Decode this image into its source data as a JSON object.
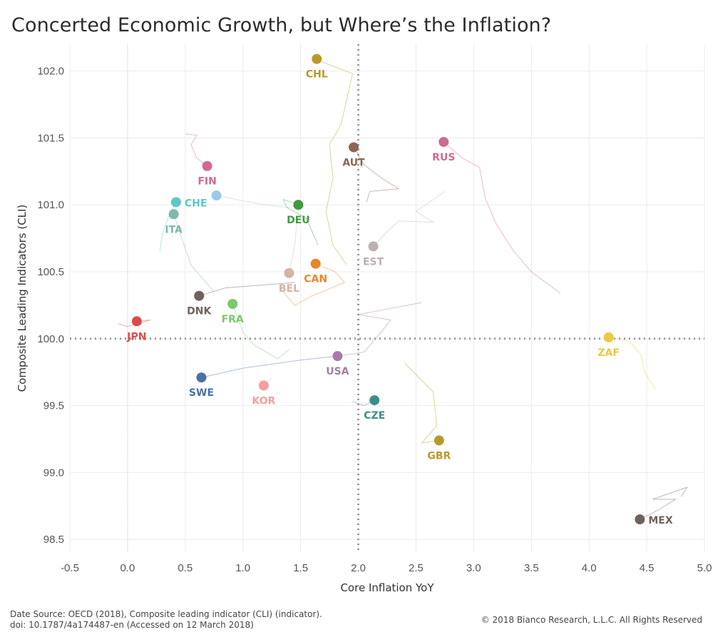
{
  "title": "Concerted Economic Growth, but Where’s the Inflation?",
  "footer": {
    "source_line1": "Date Source: OECD (2018), Composite leading indicator (CLI) (indicator).",
    "source_line2": "doi: 10.1787/4a174487-en (Accessed on 12 March 2018)",
    "copyright": "© 2018 Bianco Research, L.L.C. All Rights Reserved"
  },
  "chart_data": {
    "type": "scatter",
    "title": "Concerted Economic Growth, but Where’s the Inflation?",
    "xlabel": "Core Inflation YoY",
    "ylabel": "Composite Leading Indicators (CLI)",
    "xlim": [
      -0.5,
      5.0
    ],
    "ylim": [
      98.4,
      102.2
    ],
    "xticks": [
      "-0.5",
      "0.0",
      "0.5",
      "1.0",
      "1.5",
      "2.0",
      "2.5",
      "3.0",
      "3.5",
      "4.0",
      "4.5",
      "5.0"
    ],
    "yticks": [
      "98.5",
      "99.0",
      "99.5",
      "100.0",
      "100.5",
      "101.0",
      "101.5",
      "102.0"
    ],
    "reference_lines": {
      "x": 2.0,
      "y": 100.0
    },
    "grid": true,
    "points": [
      {
        "label": "CHL",
        "x": 1.64,
        "y": 102.09,
        "color": "#b89a2a",
        "label_pos": "below",
        "trail": [
          [
            1.65,
            102.08
          ],
          [
            1.95,
            101.98
          ],
          [
            1.85,
            101.6
          ],
          [
            1.75,
            101.45
          ],
          [
            1.78,
            101.2
          ],
          [
            1.72,
            100.95
          ],
          [
            1.78,
            100.7
          ],
          [
            1.9,
            100.55
          ]
        ]
      },
      {
        "label": "RUS",
        "x": 2.74,
        "y": 101.47,
        "color": "#d06a92",
        "label_pos": "below",
        "trail": [
          [
            2.74,
            101.47
          ],
          [
            2.9,
            101.35
          ],
          [
            3.05,
            101.28
          ],
          [
            3.1,
            101.05
          ],
          [
            3.2,
            100.85
          ],
          [
            3.35,
            100.65
          ],
          [
            3.5,
            100.5
          ],
          [
            3.75,
            100.34
          ]
        ]
      },
      {
        "label": "AUT",
        "x": 1.96,
        "y": 101.43,
        "color": "#8a6654",
        "label_pos": "below",
        "trail": [
          [
            1.96,
            101.43
          ],
          [
            2.05,
            101.3
          ],
          [
            2.2,
            101.2
          ],
          [
            2.35,
            101.12
          ],
          [
            2.1,
            101.1
          ],
          [
            2.07,
            101.02
          ]
        ]
      },
      {
        "label": "FIN",
        "x": 0.69,
        "y": 101.29,
        "color": "#d06a92",
        "label_pos": "below",
        "trail": [
          [
            0.69,
            101.29
          ],
          [
            0.6,
            101.35
          ],
          [
            0.55,
            101.45
          ],
          [
            0.6,
            101.52
          ],
          [
            0.5,
            101.53
          ]
        ]
      },
      {
        "label": "CHE",
        "x": 0.42,
        "y": 101.02,
        "color": "#5cc8c8",
        "label_pos": "right",
        "trail": [
          [
            0.42,
            101.02
          ],
          [
            0.35,
            100.9
          ],
          [
            0.3,
            100.78
          ],
          [
            0.28,
            100.65
          ]
        ]
      },
      {
        "label": "ITA",
        "x": 0.4,
        "y": 100.93,
        "color": "#7fb8ae",
        "label_pos": "below",
        "trail": [
          [
            0.4,
            100.93
          ],
          [
            0.47,
            100.75
          ],
          [
            0.55,
            100.55
          ],
          [
            0.65,
            100.45
          ],
          [
            0.75,
            100.35
          ]
        ]
      },
      {
        "label": "",
        "x": 0.77,
        "y": 101.07,
        "color": "#9cc8ea",
        "label_pos": "none",
        "trail": [
          [
            0.77,
            101.07
          ],
          [
            1.0,
            101.03
          ],
          [
            1.2,
            101.0
          ],
          [
            1.4,
            100.98
          ],
          [
            1.48,
            101.0
          ]
        ]
      },
      {
        "label": "DEU",
        "x": 1.48,
        "y": 101.0,
        "color": "#3f9b3f",
        "label_pos": "below",
        "trail": [
          [
            1.48,
            101.0
          ],
          [
            1.35,
            101.04
          ],
          [
            1.38,
            100.98
          ],
          [
            1.55,
            100.9
          ],
          [
            1.65,
            100.7
          ]
        ]
      },
      {
        "label": "EST",
        "x": 2.13,
        "y": 100.69,
        "color": "#bbb1b0",
        "label_pos": "below",
        "trail": [
          [
            2.13,
            100.69
          ],
          [
            2.25,
            100.8
          ],
          [
            2.35,
            100.88
          ],
          [
            2.65,
            100.87
          ],
          [
            2.5,
            100.95
          ],
          [
            2.75,
            101.1
          ]
        ]
      },
      {
        "label": "CAN",
        "x": 1.63,
        "y": 100.56,
        "color": "#e8862a",
        "label_pos": "below",
        "trail": [
          [
            1.63,
            100.56
          ],
          [
            1.8,
            100.5
          ],
          [
            1.88,
            100.42
          ],
          [
            1.6,
            100.32
          ],
          [
            1.45,
            100.25
          ],
          [
            1.35,
            100.35
          ]
        ]
      },
      {
        "label": "BEL",
        "x": 1.4,
        "y": 100.49,
        "color": "#d4b3a8",
        "label_pos": "below",
        "trail": [
          [
            1.4,
            100.49
          ],
          [
            1.45,
            100.7
          ],
          [
            1.47,
            100.9
          ]
        ]
      },
      {
        "label": "DNK",
        "x": 0.62,
        "y": 100.32,
        "color": "#6e625e",
        "label_pos": "below",
        "trail": [
          [
            0.62,
            100.32
          ],
          [
            0.85,
            100.38
          ],
          [
            1.15,
            100.4
          ],
          [
            1.45,
            100.42
          ]
        ]
      },
      {
        "label": "FRA",
        "x": 0.91,
        "y": 100.26,
        "color": "#7dc76e",
        "label_pos": "below",
        "trail": [
          [
            0.91,
            100.26
          ],
          [
            1.0,
            100.05
          ],
          [
            1.1,
            99.95
          ],
          [
            1.3,
            99.85
          ],
          [
            1.4,
            99.92
          ]
        ]
      },
      {
        "label": "JPN",
        "x": 0.08,
        "y": 100.13,
        "color": "#d94c4c",
        "label_pos": "below",
        "trail": [
          [
            0.08,
            100.13
          ],
          [
            0.2,
            100.14
          ],
          [
            0.0,
            100.09
          ],
          [
            -0.08,
            100.11
          ]
        ]
      },
      {
        "label": "ZAF",
        "x": 4.17,
        "y": 100.01,
        "color": "#edc843",
        "label_pos": "below",
        "trail": [
          [
            4.17,
            100.01
          ],
          [
            4.35,
            99.98
          ],
          [
            4.45,
            99.88
          ],
          [
            4.48,
            99.75
          ],
          [
            4.58,
            99.62
          ]
        ]
      },
      {
        "label": "USA",
        "x": 1.82,
        "y": 99.87,
        "color": "#a87ba4",
        "label_pos": "below",
        "trail": [
          [
            1.82,
            99.87
          ],
          [
            2.05,
            99.9
          ],
          [
            2.2,
            100.05
          ],
          [
            2.28,
            100.14
          ],
          [
            2.0,
            100.18
          ],
          [
            2.55,
            100.27
          ]
        ]
      },
      {
        "label": "SWE",
        "x": 0.64,
        "y": 99.71,
        "color": "#4a71a3",
        "label_pos": "below",
        "trail": [
          [
            0.64,
            99.71
          ],
          [
            1.0,
            99.78
          ],
          [
            1.5,
            99.84
          ],
          [
            1.82,
            99.87
          ]
        ]
      },
      {
        "label": "KOR",
        "x": 1.18,
        "y": 99.65,
        "color": "#f59f9a",
        "label_pos": "below",
        "trail": [
          [
            1.18,
            99.65
          ],
          [
            1.25,
            99.7
          ]
        ]
      },
      {
        "label": "CZE",
        "x": 2.14,
        "y": 99.54,
        "color": "#3e8c87",
        "label_pos": "below",
        "trail": [
          [
            2.14,
            99.54
          ],
          [
            2.05,
            99.5
          ],
          [
            1.95,
            99.53
          ]
        ]
      },
      {
        "label": "GBR",
        "x": 2.7,
        "y": 99.24,
        "color": "#b89a2a",
        "label_pos": "below",
        "trail": [
          [
            2.7,
            99.24
          ],
          [
            2.55,
            99.22
          ],
          [
            2.68,
            99.35
          ],
          [
            2.65,
            99.6
          ],
          [
            2.4,
            99.82
          ]
        ]
      },
      {
        "label": "MEX",
        "x": 4.44,
        "y": 98.65,
        "color": "#6e625e",
        "label_pos": "right",
        "trail": [
          [
            4.44,
            98.65
          ],
          [
            4.6,
            98.72
          ],
          [
            4.75,
            98.8
          ],
          [
            4.55,
            98.8
          ],
          [
            4.85,
            98.89
          ],
          [
            4.8,
            98.82
          ]
        ]
      }
    ]
  }
}
